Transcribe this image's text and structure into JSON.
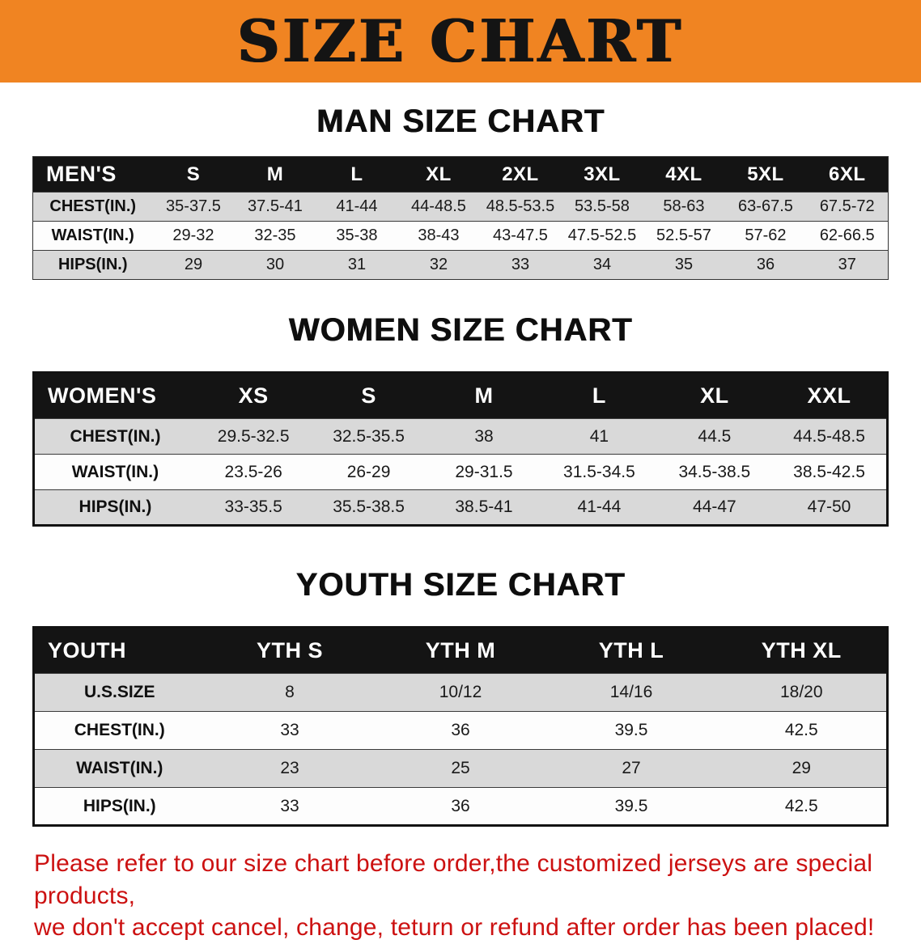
{
  "banner": {
    "title": "SIZE CHART"
  },
  "sections": [
    {
      "id": "men",
      "heading": "MAN SIZE CHART",
      "table": {
        "header": [
          "MEN'S",
          "S",
          "M",
          "L",
          "XL",
          "2XL",
          "3XL",
          "4XL",
          "5XL",
          "6XL"
        ],
        "rows": [
          {
            "label": "CHEST(IN.)",
            "values": [
              "35-37.5",
              "37.5-41",
              "41-44",
              "44-48.5",
              "48.5-53.5",
              "53.5-58",
              "58-63",
              "63-67.5",
              "67.5-72"
            ]
          },
          {
            "label": "WAIST(IN.)",
            "values": [
              "29-32",
              "32-35",
              "35-38",
              "38-43",
              "43-47.5",
              "47.5-52.5",
              "52.5-57",
              "57-62",
              "62-66.5"
            ]
          },
          {
            "label": "HIPS(IN.)",
            "values": [
              "29",
              "30",
              "31",
              "32",
              "33",
              "34",
              "35",
              "36",
              "37"
            ]
          }
        ]
      }
    },
    {
      "id": "women",
      "heading": "WOMEN SIZE CHART",
      "table": {
        "header": [
          "WOMEN'S",
          "XS",
          "S",
          "M",
          "L",
          "XL",
          "XXL"
        ],
        "rows": [
          {
            "label": "CHEST(IN.)",
            "values": [
              "29.5-32.5",
              "32.5-35.5",
              "38",
              "41",
              "44.5",
              "44.5-48.5"
            ]
          },
          {
            "label": "WAIST(IN.)",
            "values": [
              "23.5-26",
              "26-29",
              "29-31.5",
              "31.5-34.5",
              "34.5-38.5",
              "38.5-42.5"
            ]
          },
          {
            "label": "HIPS(IN.)",
            "values": [
              "33-35.5",
              "35.5-38.5",
              "38.5-41",
              "41-44",
              "44-47",
              "47-50"
            ]
          }
        ]
      }
    },
    {
      "id": "youth",
      "heading": "YOUTH SIZE CHART",
      "table": {
        "header": [
          "YOUTH",
          "YTH S",
          "YTH M",
          "YTH L",
          "YTH XL"
        ],
        "rows": [
          {
            "label": "U.S.SIZE",
            "values": [
              "8",
              "10/12",
              "14/16",
              "18/20"
            ]
          },
          {
            "label": "CHEST(IN.)",
            "values": [
              "33",
              "36",
              "39.5",
              "42.5"
            ]
          },
          {
            "label": "WAIST(IN.)",
            "values": [
              "23",
              "25",
              "27",
              "29"
            ]
          },
          {
            "label": "HIPS(IN.)",
            "values": [
              "33",
              "36",
              "39.5",
              "42.5"
            ]
          }
        ]
      }
    }
  ],
  "disclaimer": {
    "line1": "Please refer to our size chart before order,the customized jerseys are special products,",
    "line2": "we don't accept cancel, change, teturn or refund after order has been placed!"
  },
  "colors": {
    "banner_bg": "#F08422",
    "header_bg": "#141414",
    "row_stripe": "#D9D9D9",
    "disclaimer_red": "#CC1111"
  }
}
